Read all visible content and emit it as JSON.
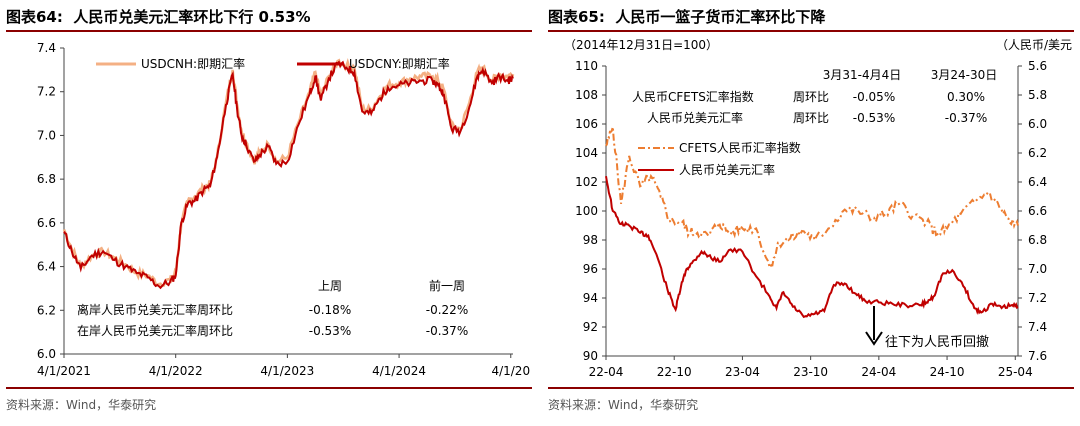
{
  "charts": {
    "left": {
      "figure_label": "图表64:",
      "title": "人民币兑美元汇率环比下行 0.53%",
      "source": "资料来源：Wind，华泰研究"
    },
    "right": {
      "figure_label": "图表65:",
      "title": "人民币一篮子货币汇率环比下降",
      "source": "资料来源：Wind，华泰研究",
      "note_base": "（2014年12月31日=100）",
      "note_unit": "（人民币/美元",
      "arrow_label": "往下为人民币回撤"
    }
  },
  "colors": {
    "accent": "#8b0000",
    "cnh": "#f4b084",
    "cny": "#c00000",
    "cfets": "#ed7d31"
  },
  "chart_data": [
    {
      "type": "line",
      "title": "人民币兑美元汇率环比下行 0.53%",
      "xlabel": "",
      "ylabel": "",
      "ylim": [
        6.0,
        7.4
      ],
      "yticks": [
        "6.0",
        "6.2",
        "6.4",
        "6.6",
        "6.8",
        "7.0",
        "7.2",
        "7.4"
      ],
      "xlim": [
        2021.25,
        2025.27
      ],
      "xticks": [
        {
          "t": 2021.25,
          "label": "4/1/2021"
        },
        {
          "t": 2022.25,
          "label": "4/1/2022"
        },
        {
          "t": 2023.25,
          "label": "4/1/2023"
        },
        {
          "t": 2024.25,
          "label": "4/1/2024"
        },
        {
          "t": 2025.25,
          "label": "4/1/20"
        }
      ],
      "legend_position": "top",
      "series": [
        {
          "name": "USDCNH:即期汇率",
          "color": "#f4b084",
          "x": [
            2021.25,
            2021.32,
            2021.4,
            2021.5,
            2021.6,
            2021.7,
            2021.8,
            2021.9,
            2022.0,
            2022.1,
            2022.2,
            2022.25,
            2022.3,
            2022.36,
            2022.42,
            2022.5,
            2022.56,
            2022.62,
            2022.7,
            2022.76,
            2022.8,
            2022.84,
            2022.88,
            2022.95,
            2023.0,
            2023.08,
            2023.15,
            2023.25,
            2023.35,
            2023.45,
            2023.5,
            2023.55,
            2023.62,
            2023.7,
            2023.78,
            2023.85,
            2023.92,
            2024.0,
            2024.08,
            2024.15,
            2024.25,
            2024.35,
            2024.45,
            2024.55,
            2024.6,
            2024.65,
            2024.72,
            2024.8,
            2024.88,
            2024.95,
            2025.0,
            2025.08,
            2025.15,
            2025.22,
            2025.27
          ],
          "y": [
            6.57,
            6.48,
            6.4,
            6.45,
            6.47,
            6.44,
            6.41,
            6.37,
            6.36,
            6.32,
            6.34,
            6.37,
            6.6,
            6.7,
            6.72,
            6.76,
            6.78,
            6.9,
            7.15,
            7.3,
            7.14,
            7.02,
            6.97,
            6.88,
            6.92,
            6.96,
            6.88,
            6.9,
            7.06,
            7.2,
            7.29,
            7.18,
            7.27,
            7.34,
            7.32,
            7.31,
            7.12,
            7.12,
            7.18,
            7.23,
            7.24,
            7.26,
            7.27,
            7.27,
            7.25,
            7.21,
            7.04,
            7.03,
            7.15,
            7.29,
            7.31,
            7.25,
            7.28,
            7.27,
            7.28
          ]
        },
        {
          "name": "USDCNY:即期汇率",
          "color": "#c00000",
          "x": [
            2021.25,
            2021.32,
            2021.4,
            2021.5,
            2021.6,
            2021.7,
            2021.8,
            2021.9,
            2022.0,
            2022.1,
            2022.2,
            2022.25,
            2022.3,
            2022.36,
            2022.42,
            2022.5,
            2022.56,
            2022.62,
            2022.7,
            2022.76,
            2022.8,
            2022.84,
            2022.88,
            2022.95,
            2023.0,
            2023.08,
            2023.15,
            2023.25,
            2023.35,
            2023.45,
            2023.5,
            2023.55,
            2023.62,
            2023.7,
            2023.78,
            2023.85,
            2023.92,
            2024.0,
            2024.08,
            2024.15,
            2024.25,
            2024.35,
            2024.45,
            2024.55,
            2024.6,
            2024.65,
            2024.72,
            2024.8,
            2024.88,
            2024.95,
            2025.0,
            2025.08,
            2025.15,
            2025.22,
            2025.27
          ],
          "y": [
            6.56,
            6.47,
            6.39,
            6.45,
            6.47,
            6.43,
            6.4,
            6.37,
            6.35,
            6.31,
            6.33,
            6.36,
            6.6,
            6.69,
            6.7,
            6.75,
            6.77,
            6.9,
            7.14,
            7.28,
            7.12,
            7.0,
            6.96,
            6.88,
            6.91,
            6.95,
            6.87,
            6.88,
            7.05,
            7.19,
            7.27,
            7.16,
            7.26,
            7.33,
            7.31,
            7.29,
            7.11,
            7.1,
            7.17,
            7.22,
            7.23,
            7.24,
            7.25,
            7.25,
            7.23,
            7.19,
            7.03,
            7.02,
            7.13,
            7.27,
            7.3,
            7.24,
            7.27,
            7.25,
            7.26
          ]
        }
      ],
      "table": {
        "headers": [
          "上周",
          "前一周"
        ],
        "rows": [
          {
            "label": "离岸人民币兑美元汇率周环比",
            "values": [
              "-0.18%",
              "-0.22%"
            ]
          },
          {
            "label": "在岸人民币兑美元汇率周环比",
            "values": [
              "-0.53%",
              "-0.37%"
            ]
          }
        ]
      }
    },
    {
      "type": "line",
      "title": "人民币一篮子货币汇率环比下降",
      "xlabel": "",
      "ylabel": "",
      "ylim": [
        90,
        110
      ],
      "yticks": [
        "90",
        "92",
        "94",
        "96",
        "98",
        "100",
        "102",
        "104",
        "106",
        "108",
        "110"
      ],
      "y2lim": [
        7.6,
        5.6
      ],
      "y2ticks": [
        "5.6",
        "5.8",
        "6.0",
        "6.2",
        "6.4",
        "6.6",
        "6.8",
        "7.0",
        "7.2",
        "7.4",
        "7.6"
      ],
      "xlim": [
        2022.25,
        2025.27
      ],
      "xticks": [
        {
          "t": 2022.25,
          "label": "22-04"
        },
        {
          "t": 2022.75,
          "label": "22-10"
        },
        {
          "t": 2023.25,
          "label": "23-04"
        },
        {
          "t": 2023.75,
          "label": "23-10"
        },
        {
          "t": 2024.25,
          "label": "24-04"
        },
        {
          "t": 2024.75,
          "label": "24-10"
        },
        {
          "t": 2025.25,
          "label": "25-04"
        }
      ],
      "legend_position": "top-right",
      "series": [
        {
          "name": "CFETS人民币汇率指数",
          "color": "#ed7d31",
          "axis": "left",
          "dash": true,
          "x": [
            2022.25,
            2022.3,
            2022.36,
            2022.42,
            2022.5,
            2022.58,
            2022.65,
            2022.72,
            2022.8,
            2022.86,
            2022.92,
            2023.0,
            2023.08,
            2023.15,
            2023.25,
            2023.35,
            2023.45,
            2023.52,
            2023.6,
            2023.7,
            2023.78,
            2023.88,
            2024.0,
            2024.1,
            2024.2,
            2024.3,
            2024.4,
            2024.5,
            2024.6,
            2024.68,
            2024.75,
            2024.85,
            2024.95,
            2025.05,
            2025.15,
            2025.22,
            2025.27
          ],
          "y": [
            104.5,
            105.8,
            100.5,
            103.8,
            101.7,
            102.4,
            101.0,
            99.3,
            99.3,
            98.5,
            98.5,
            98.3,
            99.2,
            98.5,
            98.8,
            98.8,
            96.1,
            97.8,
            98.1,
            98.6,
            98.0,
            98.8,
            100.1,
            100.0,
            99.5,
            99.8,
            100.5,
            99.7,
            99.2,
            98.4,
            98.8,
            99.8,
            100.6,
            101.3,
            100.1,
            99.1,
            99.0
          ]
        },
        {
          "name": "人民币兑美元汇率",
          "color": "#c00000",
          "axis": "right",
          "x": [
            2022.25,
            2022.3,
            2022.36,
            2022.42,
            2022.5,
            2022.56,
            2022.62,
            2022.7,
            2022.76,
            2022.8,
            2022.84,
            2022.88,
            2022.95,
            2023.0,
            2023.08,
            2023.15,
            2023.25,
            2023.35,
            2023.45,
            2023.5,
            2023.55,
            2023.62,
            2023.7,
            2023.78,
            2023.85,
            2023.92,
            2024.0,
            2024.08,
            2024.15,
            2024.25,
            2024.35,
            2024.45,
            2024.55,
            2024.6,
            2024.65,
            2024.72,
            2024.8,
            2024.88,
            2024.95,
            2025.0,
            2025.08,
            2025.15,
            2025.22,
            2025.27
          ],
          "y": [
            6.36,
            6.6,
            6.69,
            6.7,
            6.75,
            6.77,
            6.9,
            7.14,
            7.28,
            7.12,
            7.0,
            6.96,
            6.88,
            6.91,
            6.95,
            6.87,
            6.88,
            7.05,
            7.19,
            7.27,
            7.16,
            7.26,
            7.33,
            7.31,
            7.29,
            7.11,
            7.1,
            7.17,
            7.22,
            7.23,
            7.24,
            7.25,
            7.25,
            7.23,
            7.19,
            7.03,
            7.02,
            7.13,
            7.27,
            7.3,
            7.24,
            7.27,
            7.25,
            7.26
          ]
        }
      ],
      "table": {
        "headers": [
          "3月31-4月4日",
          "3月24-30日"
        ],
        "rows": [
          {
            "label": "人民币CFETS汇率指数",
            "sub": "周环比",
            "values": [
              "-0.05%",
              "0.30%"
            ]
          },
          {
            "label": "人民币兑美元汇率",
            "sub": "周环比",
            "values": [
              "-0.53%",
              "-0.37%"
            ]
          }
        ]
      }
    }
  ]
}
